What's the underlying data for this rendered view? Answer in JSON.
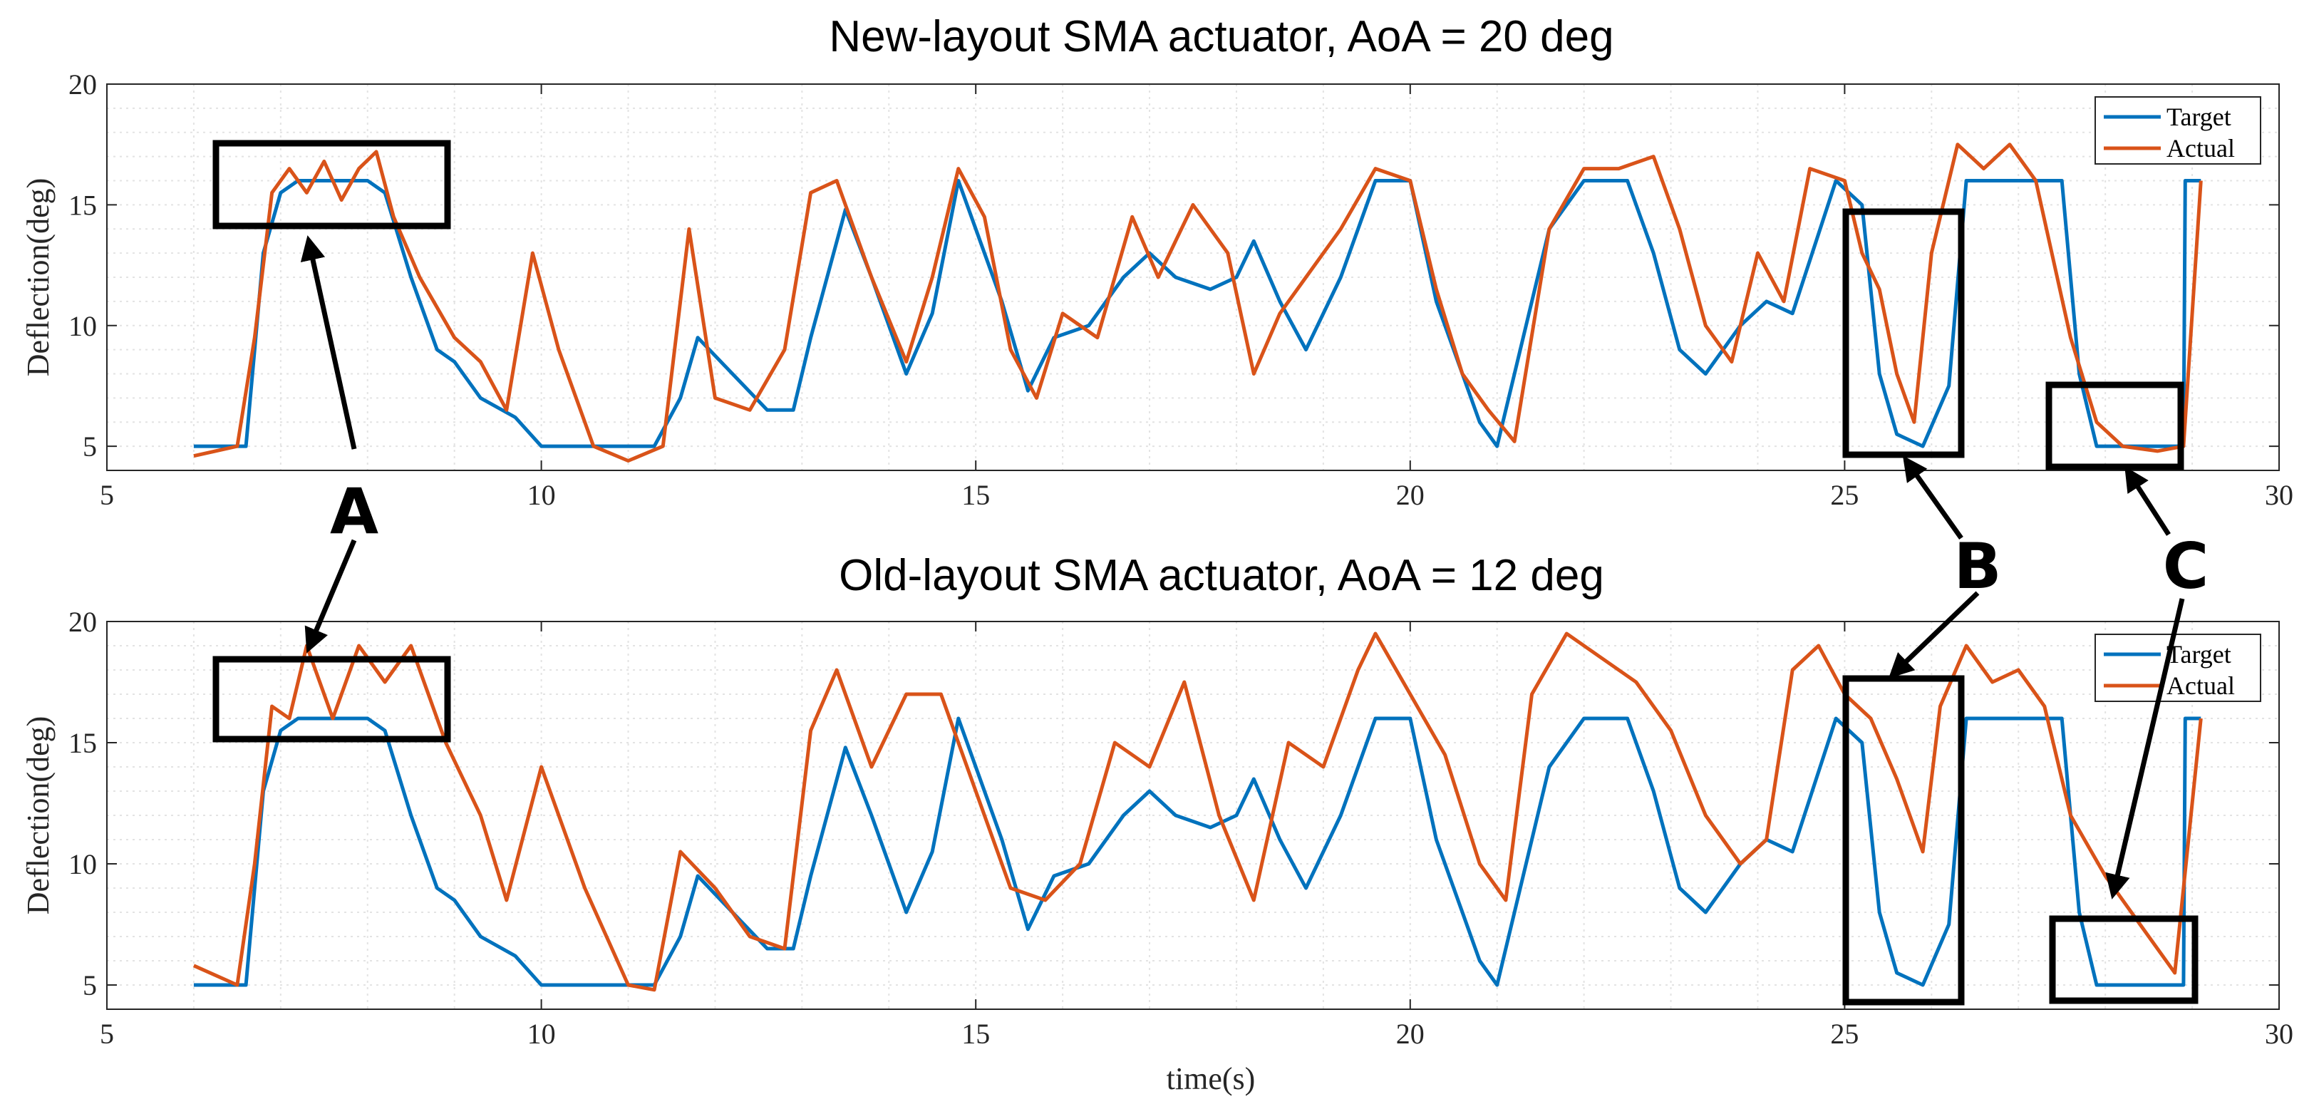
{
  "colors": {
    "target": "#0072BD",
    "actual": "#D95319"
  },
  "chart_data": [
    {
      "type": "line",
      "title": "New-layout SMA actuator, AoA = 20 deg",
      "xlabel": "",
      "ylabel": "Deflection(deg)",
      "xlim": [
        5,
        30
      ],
      "ylim": [
        4,
        20
      ],
      "xticks": [
        5,
        10,
        15,
        20,
        25,
        30
      ],
      "yticks": [
        5,
        10,
        15,
        20
      ],
      "grid": true,
      "legend_position": "top-right",
      "series": [
        {
          "name": "Target",
          "x": [
            6.0,
            6.6,
            6.7,
            6.8,
            7.0,
            7.2,
            8.0,
            8.2,
            8.5,
            8.8,
            9.0,
            9.3,
            9.7,
            10.0,
            10.6,
            11.0,
            11.3,
            11.6,
            11.8,
            12.2,
            12.6,
            12.9,
            13.1,
            13.5,
            13.8,
            14.2,
            14.5,
            14.8,
            15.1,
            15.3,
            15.6,
            15.9,
            16.3,
            16.7,
            17.0,
            17.3,
            17.7,
            18.0,
            18.2,
            18.5,
            18.8,
            19.2,
            19.6,
            20.0,
            20.3,
            20.6,
            20.8,
            21.0,
            21.3,
            21.6,
            22.0,
            22.5,
            22.8,
            23.1,
            23.4,
            23.8,
            24.1,
            24.4,
            24.9,
            25.2,
            25.4,
            25.6,
            25.9,
            26.2,
            26.4,
            27.0,
            27.5,
            27.7,
            27.9,
            28.9,
            28.92,
            29.1
          ],
          "values": [
            5.0,
            5.0,
            9.0,
            13.0,
            15.5,
            16.0,
            16.0,
            15.5,
            12.0,
            9.0,
            8.5,
            7.0,
            6.2,
            5.0,
            5.0,
            5.0,
            5.0,
            7.0,
            9.5,
            8.0,
            6.5,
            6.5,
            9.5,
            14.8,
            12.0,
            8.0,
            10.5,
            16.0,
            13.0,
            11.0,
            7.3,
            9.5,
            10.0,
            12.0,
            13.0,
            12.0,
            11.5,
            12.0,
            13.5,
            11.0,
            9.0,
            12.0,
            16.0,
            16.0,
            11.0,
            8.0,
            6.0,
            5.0,
            9.5,
            14.0,
            16.0,
            16.0,
            13.0,
            9.0,
            8.0,
            10.0,
            11.0,
            10.5,
            16.0,
            15.0,
            8.0,
            5.5,
            5.0,
            7.5,
            16.0,
            16.0,
            16.0,
            8.0,
            5.0,
            5.0,
            16.0,
            16.0
          ]
        },
        {
          "name": "Actual",
          "x": [
            6.0,
            6.5,
            6.7,
            6.9,
            7.1,
            7.3,
            7.5,
            7.7,
            7.9,
            8.1,
            8.3,
            8.6,
            9.0,
            9.3,
            9.6,
            9.9,
            10.2,
            10.6,
            11.0,
            11.4,
            11.7,
            12.0,
            12.4,
            12.8,
            13.1,
            13.4,
            13.8,
            14.2,
            14.5,
            14.8,
            15.1,
            15.4,
            15.7,
            16.0,
            16.4,
            16.8,
            17.1,
            17.5,
            17.9,
            18.2,
            18.5,
            18.8,
            19.2,
            19.6,
            20.0,
            20.3,
            20.6,
            20.9,
            21.2,
            21.6,
            22.0,
            22.4,
            22.8,
            23.1,
            23.4,
            23.7,
            24.0,
            24.3,
            24.6,
            25.0,
            25.2,
            25.4,
            25.6,
            25.8,
            26.0,
            26.3,
            26.6,
            26.9,
            27.2,
            27.6,
            27.9,
            28.2,
            28.6,
            28.9,
            29.1
          ],
          "values": [
            4.6,
            5.0,
            9.5,
            15.5,
            16.5,
            15.5,
            16.8,
            15.2,
            16.5,
            17.2,
            14.5,
            12.0,
            9.5,
            8.5,
            6.5,
            13.0,
            9.0,
            5.0,
            4.4,
            5.0,
            14.0,
            7.0,
            6.5,
            9.0,
            15.5,
            16.0,
            12.0,
            8.5,
            12.0,
            16.5,
            14.5,
            9.0,
            7.0,
            10.5,
            9.5,
            14.5,
            12.0,
            15.0,
            13.0,
            8.0,
            10.5,
            12.0,
            14.0,
            16.5,
            16.0,
            11.5,
            8.0,
            6.5,
            5.2,
            14.0,
            16.5,
            16.5,
            17.0,
            14.0,
            10.0,
            8.5,
            13.0,
            11.0,
            16.5,
            16.0,
            13.0,
            11.5,
            8.0,
            6.0,
            13.0,
            17.5,
            16.5,
            17.5,
            16.0,
            9.5,
            6.0,
            5.0,
            4.8,
            5.0,
            16.0
          ]
        }
      ],
      "annotations": [
        "A",
        "B",
        "C"
      ]
    },
    {
      "type": "line",
      "title": "Old-layout SMA actuator, AoA = 12 deg",
      "xlabel": "time(s)",
      "ylabel": "Deflection(deg)",
      "xlim": [
        5,
        30
      ],
      "ylim": [
        4,
        20
      ],
      "xticks": [
        5,
        10,
        15,
        20,
        25,
        30
      ],
      "yticks": [
        5,
        10,
        15,
        20
      ],
      "grid": true,
      "legend_position": "top-right",
      "series": [
        {
          "name": "Target",
          "x": [
            6.0,
            6.6,
            6.7,
            6.8,
            7.0,
            7.2,
            8.0,
            8.2,
            8.5,
            8.8,
            9.0,
            9.3,
            9.7,
            10.0,
            10.6,
            11.0,
            11.3,
            11.6,
            11.8,
            12.2,
            12.6,
            12.9,
            13.1,
            13.5,
            13.8,
            14.2,
            14.5,
            14.8,
            15.1,
            15.3,
            15.6,
            15.9,
            16.3,
            16.7,
            17.0,
            17.3,
            17.7,
            18.0,
            18.2,
            18.5,
            18.8,
            19.2,
            19.6,
            20.0,
            20.3,
            20.6,
            20.8,
            21.0,
            21.3,
            21.6,
            22.0,
            22.5,
            22.8,
            23.1,
            23.4,
            23.8,
            24.1,
            24.4,
            24.9,
            25.2,
            25.4,
            25.6,
            25.9,
            26.2,
            26.4,
            27.0,
            27.5,
            27.7,
            27.9,
            28.9,
            28.92,
            29.1
          ],
          "values": [
            5.0,
            5.0,
            9.0,
            13.0,
            15.5,
            16.0,
            16.0,
            15.5,
            12.0,
            9.0,
            8.5,
            7.0,
            6.2,
            5.0,
            5.0,
            5.0,
            5.0,
            7.0,
            9.5,
            8.0,
            6.5,
            6.5,
            9.5,
            14.8,
            12.0,
            8.0,
            10.5,
            16.0,
            13.0,
            11.0,
            7.3,
            9.5,
            10.0,
            12.0,
            13.0,
            12.0,
            11.5,
            12.0,
            13.5,
            11.0,
            9.0,
            12.0,
            16.0,
            16.0,
            11.0,
            8.0,
            6.0,
            5.0,
            9.5,
            14.0,
            16.0,
            16.0,
            13.0,
            9.0,
            8.0,
            10.0,
            11.0,
            10.5,
            16.0,
            15.0,
            8.0,
            5.5,
            5.0,
            7.5,
            16.0,
            16.0,
            16.0,
            8.0,
            5.0,
            5.0,
            16.0,
            16.0
          ]
        },
        {
          "name": "Actual",
          "x": [
            6.0,
            6.5,
            6.7,
            6.9,
            7.1,
            7.3,
            7.6,
            7.9,
            8.2,
            8.5,
            8.9,
            9.3,
            9.6,
            10.0,
            10.5,
            11.0,
            11.3,
            11.6,
            12.0,
            12.4,
            12.8,
            13.1,
            13.4,
            13.8,
            14.2,
            14.6,
            15.0,
            15.4,
            15.8,
            16.2,
            16.6,
            17.0,
            17.4,
            17.8,
            18.2,
            18.6,
            19.0,
            19.4,
            19.6,
            20.0,
            20.4,
            20.8,
            21.1,
            21.4,
            21.8,
            22.2,
            22.6,
            23.0,
            23.4,
            23.8,
            24.1,
            24.4,
            24.7,
            25.0,
            25.3,
            25.6,
            25.9,
            26.1,
            26.4,
            26.7,
            27.0,
            27.3,
            27.6,
            28.0,
            28.4,
            28.8,
            29.1
          ],
          "values": [
            5.8,
            5.0,
            10.0,
            16.5,
            16.0,
            19.0,
            16.0,
            19.0,
            17.5,
            19.0,
            15.0,
            12.0,
            8.5,
            14.0,
            9.0,
            5.0,
            4.8,
            10.5,
            9.0,
            7.0,
            6.5,
            15.5,
            18.0,
            14.0,
            17.0,
            17.0,
            13.0,
            9.0,
            8.5,
            10.0,
            15.0,
            14.0,
            17.5,
            12.0,
            8.5,
            15.0,
            14.0,
            18.0,
            19.5,
            17.0,
            14.5,
            10.0,
            8.5,
            17.0,
            19.5,
            18.5,
            17.5,
            15.5,
            12.0,
            10.0,
            11.0,
            18.0,
            19.0,
            17.0,
            16.0,
            13.5,
            10.5,
            16.5,
            19.0,
            17.5,
            18.0,
            16.5,
            12.0,
            9.5,
            7.5,
            5.5,
            16.0
          ]
        }
      ],
      "annotations": [
        "A",
        "B",
        "C"
      ]
    }
  ]
}
